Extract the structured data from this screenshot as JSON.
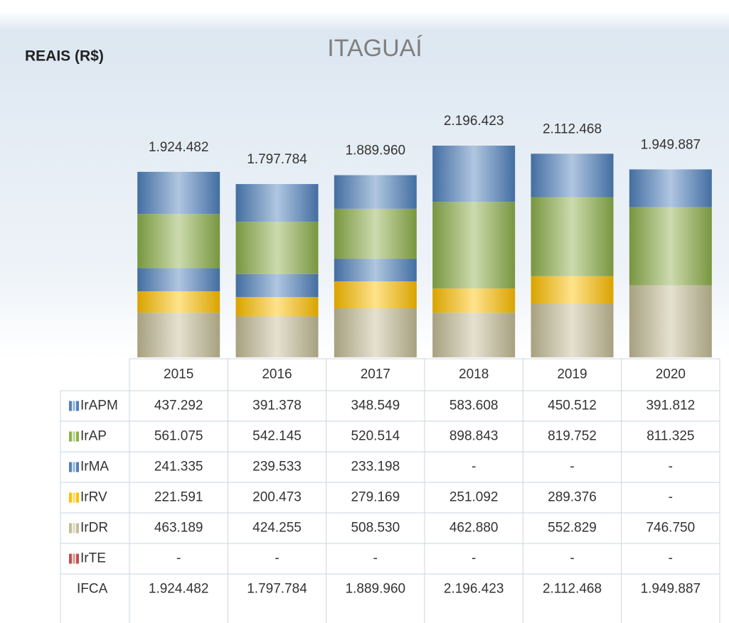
{
  "chart_data": {
    "type": "bar",
    "stacked": true,
    "title": "ITAGUAÍ",
    "y_label": "REAIS (R$)",
    "categories": [
      "2015",
      "2016",
      "2017",
      "2018",
      "2019",
      "2020"
    ],
    "series": [
      {
        "name": "IrAPM",
        "color": "#4f81bd",
        "values": [
          437292,
          391378,
          348549,
          583608,
          450512,
          391812
        ],
        "value_labels": [
          "437.292",
          "391.378",
          "348.549",
          "583.608",
          "450.512",
          "391.812"
        ]
      },
      {
        "name": "IrAP",
        "color": "#8db04a",
        "values": [
          561075,
          542145,
          520514,
          898843,
          819752,
          811325
        ],
        "value_labels": [
          "561.075",
          "542.145",
          "520.514",
          "898.843",
          "819.752",
          "811.325"
        ]
      },
      {
        "name": "IrMA",
        "color": "#4f81bd",
        "values": [
          241335,
          239533,
          233198,
          null,
          null,
          null
        ],
        "value_labels": [
          "241.335",
          "239.533",
          "233.198",
          "-",
          "-",
          "-"
        ]
      },
      {
        "name": "IrRV",
        "color": "#ffc000",
        "values": [
          221591,
          200473,
          279169,
          251092,
          289376,
          null
        ],
        "value_labels": [
          "221.591",
          "200.473",
          "279.169",
          "251.092",
          "289.376",
          "-"
        ]
      },
      {
        "name": "IrDR",
        "color": "#c4bd97",
        "values": [
          463189,
          424255,
          508530,
          462880,
          552829,
          746750
        ],
        "value_labels": [
          "463.189",
          "424.255",
          "508.530",
          "462.880",
          "552.829",
          "746.750"
        ]
      },
      {
        "name": "IrTE",
        "color": "#c0504d",
        "values": [
          null,
          null,
          null,
          null,
          null,
          null
        ],
        "value_labels": [
          "-",
          "-",
          "-",
          "-",
          "-",
          "-"
        ]
      }
    ],
    "totals_name": "IFCA",
    "totals": [
      1924482,
      1797784,
      1889960,
      2196423,
      2112468,
      1949887
    ],
    "total_labels": [
      "1.924.482",
      "1.797.784",
      "1.889.960",
      "2.196.423",
      "2.112.468",
      "1.949.887"
    ]
  }
}
